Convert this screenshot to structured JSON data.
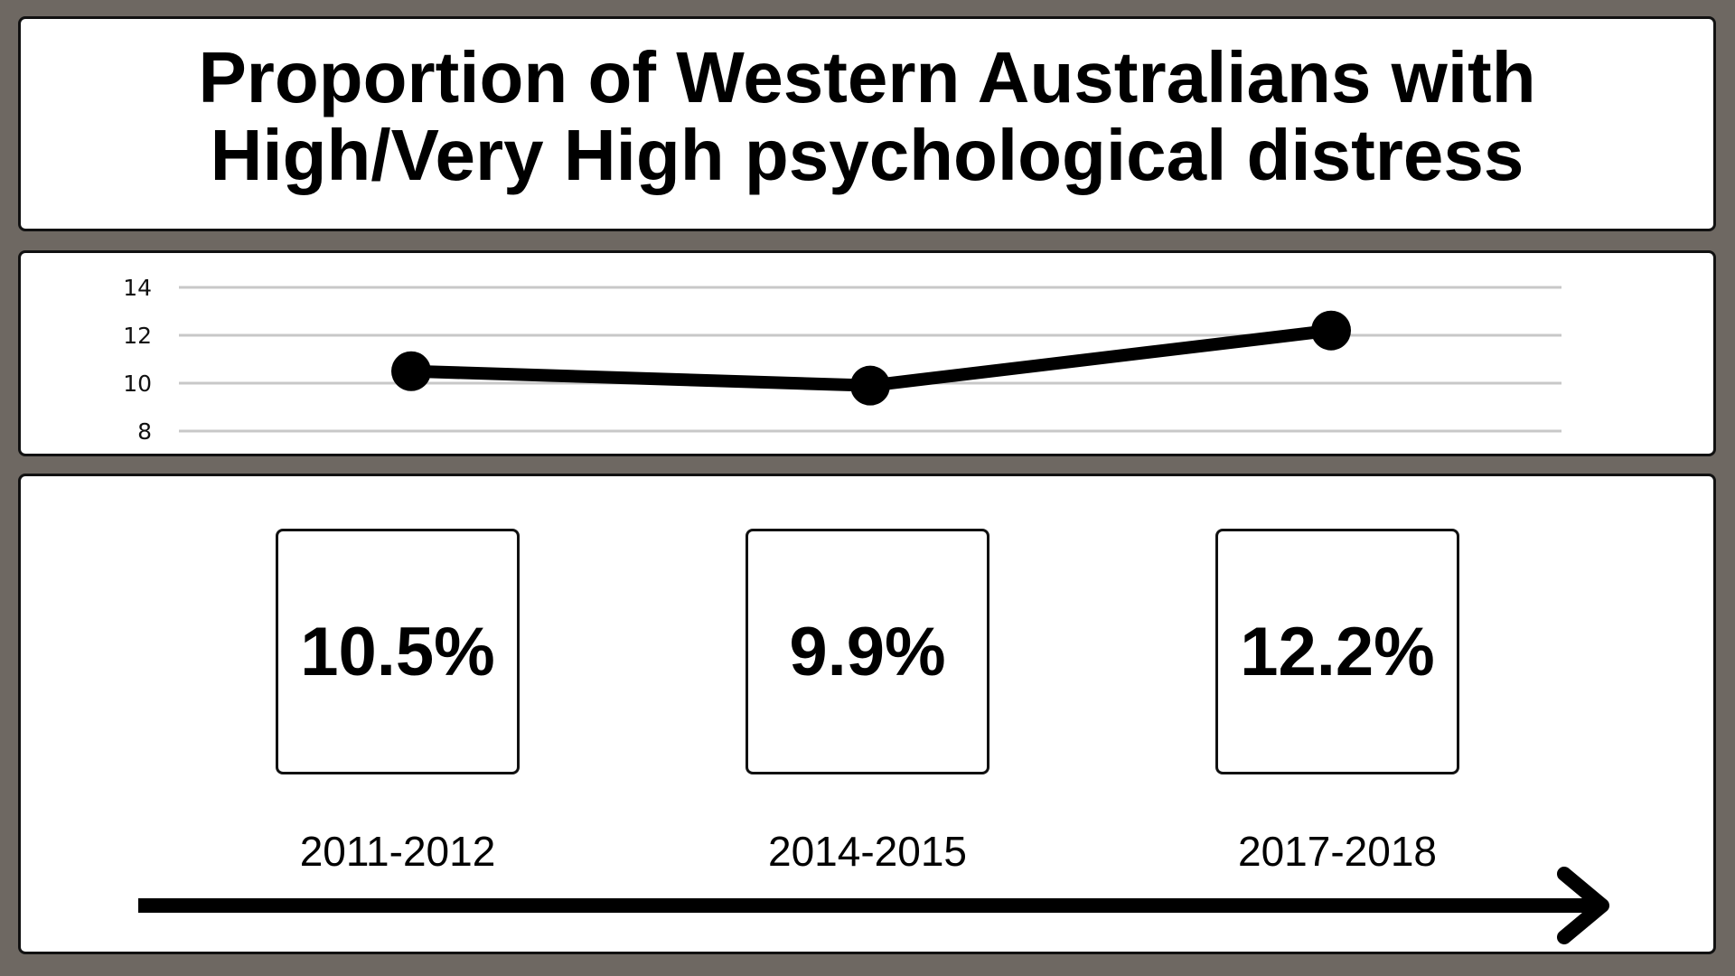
{
  "title": {
    "line1": "Proportion of Western Australians with",
    "line2": "High/Very High psychological distress"
  },
  "colors": {
    "background": "#6e6862",
    "panel": "#ffffff",
    "line": "#000000",
    "gridline": "#c8c8c8"
  },
  "stats": [
    {
      "value": "10.5%",
      "period": "2011-2012"
    },
    {
      "value": "9.9%",
      "period": "2014-2015"
    },
    {
      "value": "12.2%",
      "period": "2017-2018"
    }
  ],
  "chart_data": {
    "type": "line",
    "categories": [
      "2011-2012",
      "2014-2015",
      "2017-2018"
    ],
    "series": [
      {
        "values": [
          10.5,
          9.9,
          12.2
        ]
      }
    ],
    "y_ticks": [
      8,
      10,
      12,
      14
    ],
    "ylim": [
      8,
      14
    ],
    "grid": true,
    "legend": "none",
    "title": "",
    "xlabel": "",
    "ylabel": ""
  }
}
